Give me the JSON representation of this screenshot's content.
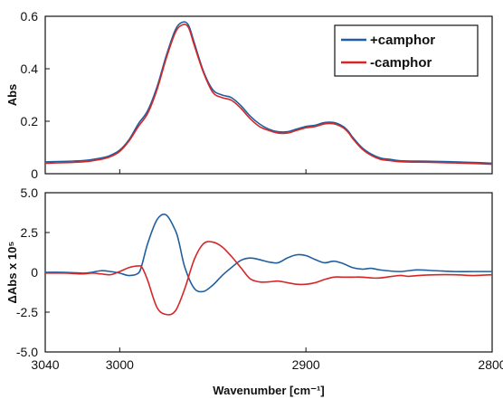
{
  "chart_data": [
    {
      "type": "line",
      "xlabel": "",
      "ylabel": "Abs",
      "xlim": [
        3040,
        2800
      ],
      "ylim": [
        0,
        0.6
      ],
      "x_reversed": true,
      "grid": false,
      "y_ticks": [
        0,
        0.2,
        0.4,
        0.6
      ],
      "y_tick_labels": [
        "0",
        "0.2",
        "0.4",
        "0.6"
      ],
      "legend_position": "top-right",
      "series": [
        {
          "name": "+camphor",
          "color": "#1f5fa0",
          "x": [
            3040,
            3020,
            3010,
            3005,
            3000,
            2995,
            2990,
            2985,
            2980,
            2975,
            2970,
            2966,
            2963,
            2960,
            2955,
            2950,
            2945,
            2940,
            2935,
            2930,
            2925,
            2920,
            2915,
            2910,
            2905,
            2900,
            2895,
            2890,
            2885,
            2880,
            2877,
            2875,
            2870,
            2865,
            2860,
            2855,
            2850,
            2840,
            2830,
            2820,
            2810,
            2800
          ],
          "y": [
            0.045,
            0.05,
            0.06,
            0.07,
            0.09,
            0.13,
            0.19,
            0.24,
            0.33,
            0.45,
            0.55,
            0.578,
            0.565,
            0.5,
            0.39,
            0.32,
            0.3,
            0.29,
            0.26,
            0.22,
            0.19,
            0.17,
            0.16,
            0.16,
            0.17,
            0.18,
            0.185,
            0.195,
            0.195,
            0.18,
            0.16,
            0.14,
            0.1,
            0.075,
            0.06,
            0.055,
            0.05,
            0.048,
            0.047,
            0.045,
            0.043,
            0.04
          ]
        },
        {
          "name": "-camphor",
          "color": "#d62728",
          "x": [
            3040,
            3020,
            3010,
            3005,
            3000,
            2995,
            2990,
            2985,
            2980,
            2975,
            2970,
            2966,
            2963,
            2960,
            2955,
            2950,
            2945,
            2940,
            2935,
            2930,
            2925,
            2920,
            2915,
            2910,
            2905,
            2900,
            2895,
            2890,
            2885,
            2880,
            2877,
            2875,
            2870,
            2865,
            2860,
            2855,
            2850,
            2840,
            2830,
            2820,
            2810,
            2800
          ],
          "y": [
            0.04,
            0.045,
            0.055,
            0.065,
            0.085,
            0.125,
            0.18,
            0.23,
            0.32,
            0.44,
            0.54,
            0.568,
            0.556,
            0.49,
            0.385,
            0.31,
            0.29,
            0.28,
            0.25,
            0.21,
            0.18,
            0.165,
            0.155,
            0.155,
            0.165,
            0.175,
            0.18,
            0.19,
            0.19,
            0.175,
            0.155,
            0.135,
            0.095,
            0.07,
            0.055,
            0.05,
            0.046,
            0.044,
            0.043,
            0.041,
            0.039,
            0.036
          ]
        }
      ]
    },
    {
      "type": "line",
      "xlabel": "Wavenumber [cm⁻¹]",
      "ylabel": "ΔAbs x 10⁵",
      "xlim": [
        3040,
        2800
      ],
      "ylim": [
        -5,
        5
      ],
      "x_reversed": true,
      "grid": false,
      "x_ticks": [
        3040,
        3000,
        2900,
        2800
      ],
      "x_tick_labels": [
        "3040",
        "3000",
        "2900",
        "2800"
      ],
      "y_ticks": [
        -5,
        -2.5,
        0,
        2.5,
        5
      ],
      "y_tick_labels": [
        "-5.0",
        "-2.5",
        "0",
        "2.5",
        "5.0"
      ],
      "series": [
        {
          "name": "+camphor",
          "color": "#1f5fa0",
          "x": [
            3040,
            3030,
            3020,
            3015,
            3010,
            3005,
            3000,
            2995,
            2990,
            2988,
            2985,
            2980,
            2975,
            2970,
            2968,
            2965,
            2960,
            2955,
            2950,
            2945,
            2940,
            2935,
            2930,
            2925,
            2920,
            2915,
            2910,
            2905,
            2900,
            2895,
            2890,
            2885,
            2880,
            2875,
            2870,
            2865,
            2860,
            2850,
            2845,
            2840,
            2830,
            2820,
            2810,
            2800
          ],
          "y": [
            0,
            0,
            -0.05,
            0,
            0.1,
            0.05,
            -0.05,
            -0.2,
            -0.05,
            0.5,
            1.8,
            3.3,
            3.6,
            2.6,
            1.8,
            0.3,
            -1.0,
            -1.2,
            -0.8,
            -0.2,
            0.3,
            0.75,
            0.9,
            0.8,
            0.65,
            0.6,
            0.9,
            1.1,
            1.05,
            0.8,
            0.6,
            0.7,
            0.55,
            0.3,
            0.2,
            0.25,
            0.15,
            0.05,
            0.1,
            0.15,
            0.1,
            0.05,
            0.05,
            0.05
          ]
        },
        {
          "name": "-camphor",
          "color": "#d62728",
          "x": [
            3040,
            3030,
            3020,
            3015,
            3010,
            3005,
            3000,
            2995,
            2990,
            2988,
            2985,
            2980,
            2975,
            2970,
            2965,
            2960,
            2955,
            2950,
            2945,
            2940,
            2935,
            2930,
            2925,
            2920,
            2915,
            2910,
            2905,
            2900,
            2895,
            2890,
            2885,
            2880,
            2875,
            2870,
            2865,
            2860,
            2850,
            2845,
            2840,
            2830,
            2820,
            2810,
            2800
          ],
          "y": [
            -0.05,
            -0.05,
            -0.1,
            -0.05,
            -0.1,
            -0.15,
            0.05,
            0.3,
            0.4,
            0.3,
            -0.5,
            -2.2,
            -2.65,
            -2.4,
            -1.0,
            0.8,
            1.8,
            1.9,
            1.6,
            1.0,
            0.3,
            -0.4,
            -0.6,
            -0.6,
            -0.55,
            -0.65,
            -0.75,
            -0.75,
            -0.65,
            -0.45,
            -0.3,
            -0.3,
            -0.3,
            -0.3,
            -0.35,
            -0.35,
            -0.2,
            -0.25,
            -0.2,
            -0.15,
            -0.15,
            -0.2,
            -0.15
          ]
        }
      ]
    }
  ]
}
